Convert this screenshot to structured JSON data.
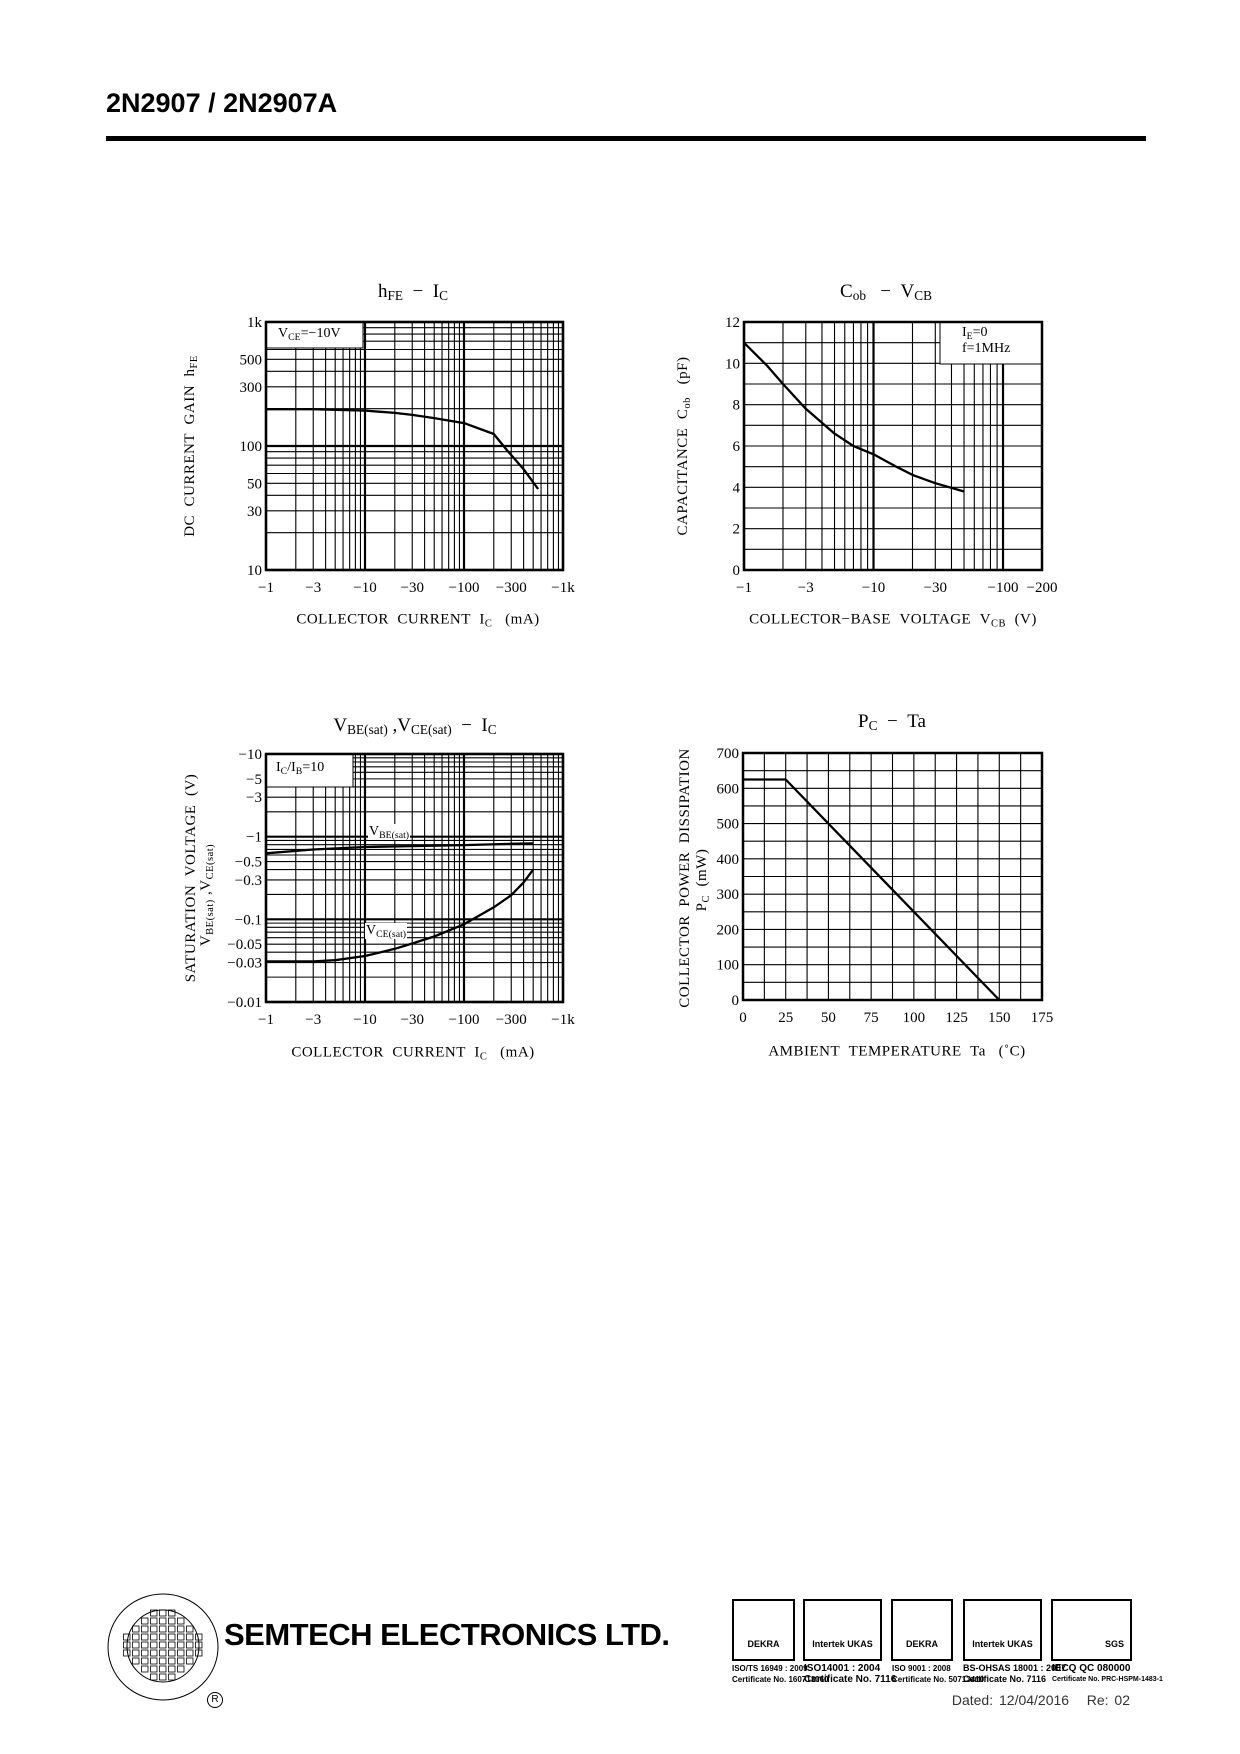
{
  "header": {
    "title": "2N2907 / 2N2907A"
  },
  "chart_data": [
    {
      "type": "line",
      "title": "h_{FE}  −  I_{C}",
      "xlabel": "COLLECTOR  CURRENT  I_{C}   (mA)",
      "ylabel": [
        "DC  CURRENT  GAIN  h_{FE}"
      ],
      "xscale": "log",
      "yscale": "log",
      "xlim": [
        1,
        1000
      ],
      "ylim": [
        10,
        1000
      ],
      "xticks": [
        1,
        3,
        10,
        30,
        100,
        300,
        1000
      ],
      "xticklabels": [
        "−1",
        "−3",
        "−10",
        "−30",
        "−100",
        "−300",
        "−1k"
      ],
      "yticks": [
        10,
        30,
        50,
        100,
        300,
        500,
        1000
      ],
      "yticklabels": [
        "10",
        "30",
        "50",
        "100",
        "300",
        "500",
        "1k"
      ],
      "grid": true,
      "legend": {
        "text": "V_{CE}=−10V",
        "placement": "top-left"
      },
      "series": [
        {
          "x": [
            1,
            3,
            10,
            20,
            30,
            50,
            100,
            200,
            270,
            400,
            560
          ],
          "y": [
            198,
            198,
            193,
            185,
            178,
            168,
            153,
            125,
            93,
            65,
            45
          ]
        }
      ]
    },
    {
      "type": "line",
      "title": "C_{ob}   −  V_{CB}",
      "xlabel": "COLLECTOR−BASE  VOLTAGE  V_{CB}  (V)",
      "ylabel": [
        "CAPACITANCE  C_{ob}   (pF)"
      ],
      "xscale": "log",
      "yscale": "linear",
      "xlim": [
        1,
        200
      ],
      "ylim": [
        0,
        12
      ],
      "xticks": [
        1,
        3,
        10,
        30,
        100,
        200
      ],
      "xticklabels": [
        "−1",
        "−3",
        "−10",
        "−30",
        "−100",
        "−200"
      ],
      "yticks": [
        0,
        2,
        4,
        6,
        8,
        10,
        12
      ],
      "yticklabels": [
        "0",
        "2",
        "4",
        "6",
        "8",
        "10",
        "12"
      ],
      "grid": true,
      "legend": {
        "text": "I_{E}=0\nf=1MHz",
        "placement": "top-right"
      },
      "series": [
        {
          "x": [
            1,
            1.5,
            2,
            3,
            5,
            7,
            10,
            15,
            20,
            30,
            50
          ],
          "y": [
            11,
            9.9,
            9.0,
            7.8,
            6.6,
            6.0,
            5.6,
            5.0,
            4.6,
            4.2,
            3.8
          ]
        }
      ]
    },
    {
      "type": "line",
      "title": "V_{BE(sat)} ,V_{CE(sat)}  −  I_{C}",
      "xlabel": "COLLECTOR  CURRENT  I_{C}   (mA)",
      "ylabel": [
        "SATURATION  VOLTAGE  (V)",
        "V_{BE(sat)} ,V_{CE(sat)}"
      ],
      "xscale": "log",
      "yscale": "log",
      "xlim": [
        1,
        1000
      ],
      "ylim": [
        0.01,
        10
      ],
      "xticks": [
        1,
        3,
        10,
        30,
        100,
        300,
        1000
      ],
      "xticklabels": [
        "−1",
        "−3",
        "−10",
        "−30",
        "−100",
        "−300",
        "−1k"
      ],
      "yticks": [
        0.01,
        0.03,
        0.05,
        0.1,
        0.3,
        0.5,
        1,
        3,
        5,
        10
      ],
      "yticklabels": [
        "−0.01",
        "−0.03",
        "−0.05",
        "−0.1",
        "−0.3",
        "−0.5",
        "−1",
        "−3",
        "−5",
        "−10"
      ],
      "grid": true,
      "legend": {
        "text": "I_{C}/I_{B}=10",
        "placement": "top-left"
      },
      "series": [
        {
          "name": "V_{BE(sat)}",
          "x": [
            1,
            3,
            10,
            30,
            100,
            300,
            500
          ],
          "y": [
            0.63,
            0.7,
            0.75,
            0.77,
            0.79,
            0.82,
            0.83
          ]
        },
        {
          "name": "V_{CE(sat)}",
          "x": [
            1,
            3,
            5,
            10,
            20,
            30,
            50,
            100,
            200,
            300,
            400,
            500
          ],
          "y": [
            0.031,
            0.031,
            0.032,
            0.036,
            0.044,
            0.051,
            0.062,
            0.087,
            0.14,
            0.196,
            0.28,
            0.4
          ]
        }
      ]
    },
    {
      "type": "line",
      "title": "P_{C}  −  Ta",
      "xlabel": "AMBIENT  TEMPERATURE  Ta   (˚C)",
      "ylabel": [
        "COLLECTOR  POWER  DISSIPATION",
        "P_{C}  (mW)"
      ],
      "xscale": "linear",
      "yscale": "linear",
      "xlim": [
        0,
        175
      ],
      "ylim": [
        0,
        700
      ],
      "xticks": [
        0,
        25,
        50,
        75,
        100,
        125,
        150,
        175
      ],
      "xticklabels": [
        "0",
        "25",
        "50",
        "75",
        "100",
        "125",
        "150",
        "175"
      ],
      "yticks": [
        0,
        100,
        200,
        300,
        400,
        500,
        600,
        700
      ],
      "yticklabels": [
        "0",
        "100",
        "200",
        "300",
        "400",
        "500",
        "600",
        "700"
      ],
      "grid": true,
      "series": [
        {
          "x": [
            0,
            25,
            150
          ],
          "y": [
            625,
            625,
            0
          ]
        }
      ]
    }
  ],
  "footer": {
    "company": "SEMTECH ELECTRONICS LTD.",
    "registered_mark": "R",
    "certs": [
      {
        "logo": "DEKRA",
        "line1": "ISO/TS 16949 : 2009",
        "line2": "Certificate No. 160713060"
      },
      {
        "logo": "Intertek   UKAS",
        "line1": "ISO14001 : 2004",
        "line2": "Certificate No. 7116"
      },
      {
        "logo": "DEKRA",
        "line1": "ISO 9001 : 2008",
        "line2": "Certificate No. 50713410"
      },
      {
        "logo": "Intertek   UKAS",
        "line1": "BS-OHSAS 18001 : 2007",
        "line2": "Certificate No. 7116"
      },
      {
        "logo": "SGS",
        "line1": "IECQ QC 080000",
        "line2": "Certificate No. PRC-HSPM-1483-1"
      }
    ],
    "dated": "Dated: 12/04/2016",
    "revision": "Re: 02"
  }
}
